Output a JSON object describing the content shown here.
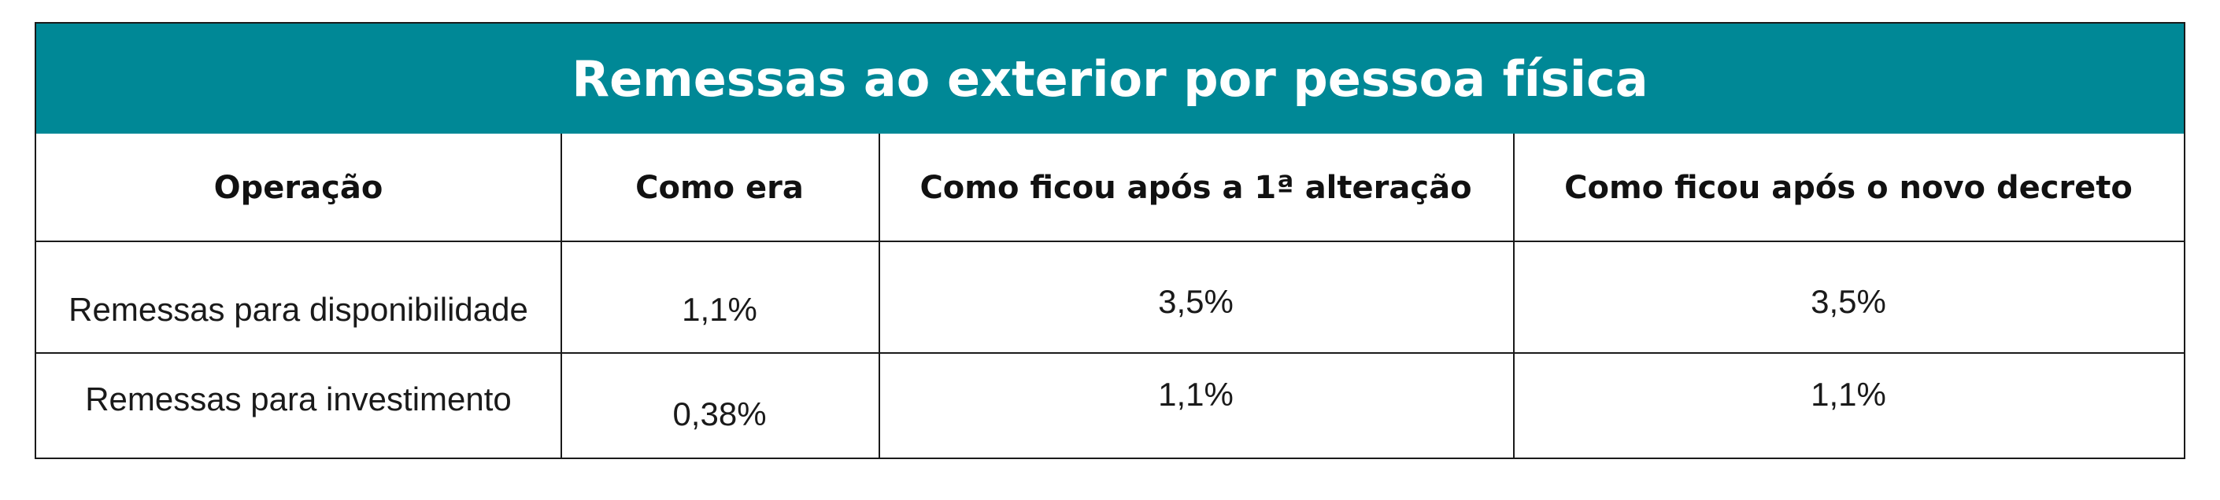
{
  "table": {
    "title": "Remessas ao exterior por pessoa física",
    "headers": [
      "Operação",
      "Como era",
      "Como ficou após a 1ª alteração",
      "Como ficou após o novo decreto"
    ],
    "rows": [
      [
        "Remessas para disponibilidade",
        "1,1%",
        "3,5%",
        "3,5%"
      ],
      [
        "Remessas para investimento",
        "0,38%",
        "1,1%",
        "1,1%"
      ]
    ]
  },
  "colors": {
    "title_background": "#008896",
    "title_text": "#ffffff",
    "border": "#1a1a1a"
  }
}
